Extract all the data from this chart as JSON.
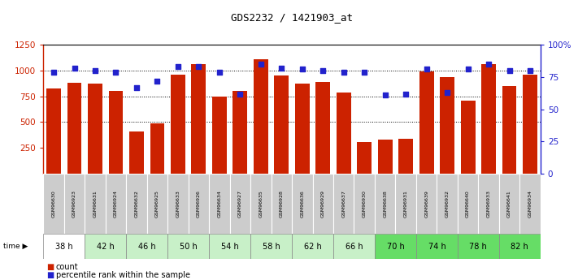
{
  "title": "GDS2232 / 1421903_at",
  "samples": [
    "GSM96630",
    "GSM96923",
    "GSM96631",
    "GSM96924",
    "GSM96632",
    "GSM96925",
    "GSM96633",
    "GSM96926",
    "GSM96634",
    "GSM96927",
    "GSM96635",
    "GSM96928",
    "GSM96636",
    "GSM96929",
    "GSM96637",
    "GSM96930",
    "GSM96638",
    "GSM96931",
    "GSM96639",
    "GSM96932",
    "GSM96640",
    "GSM96933",
    "GSM96641",
    "GSM96934"
  ],
  "counts": [
    830,
    880,
    870,
    800,
    410,
    490,
    960,
    1060,
    750,
    800,
    1110,
    950,
    875,
    890,
    790,
    310,
    330,
    340,
    990,
    940,
    710,
    1060,
    850,
    960
  ],
  "percentile_ranks": [
    79,
    82,
    80,
    79,
    67,
    72,
    83,
    83,
    79,
    62,
    85,
    82,
    81,
    80,
    79,
    79,
    61,
    62,
    81,
    63,
    81,
    85,
    80,
    80
  ],
  "time_groups": [
    {
      "label": "38 h",
      "start": 0,
      "end": 2,
      "color": "#ffffff"
    },
    {
      "label": "42 h",
      "start": 2,
      "end": 4,
      "color": "#c8f0c8"
    },
    {
      "label": "46 h",
      "start": 4,
      "end": 6,
      "color": "#c8f0c8"
    },
    {
      "label": "50 h",
      "start": 6,
      "end": 8,
      "color": "#c8f0c8"
    },
    {
      "label": "54 h",
      "start": 8,
      "end": 10,
      "color": "#c8f0c8"
    },
    {
      "label": "58 h",
      "start": 10,
      "end": 12,
      "color": "#c8f0c8"
    },
    {
      "label": "62 h",
      "start": 12,
      "end": 14,
      "color": "#c8f0c8"
    },
    {
      "label": "66 h",
      "start": 14,
      "end": 16,
      "color": "#c8f0c8"
    },
    {
      "label": "70 h",
      "start": 16,
      "end": 18,
      "color": "#66dd66"
    },
    {
      "label": "74 h",
      "start": 18,
      "end": 20,
      "color": "#66dd66"
    },
    {
      "label": "78 h",
      "start": 20,
      "end": 22,
      "color": "#66dd66"
    },
    {
      "label": "82 h",
      "start": 22,
      "end": 24,
      "color": "#66dd66"
    }
  ],
  "bar_color": "#cc2200",
  "dot_color": "#2222cc",
  "ylim_left": [
    0,
    1250
  ],
  "ylim_right": [
    0,
    100
  ],
  "yticks_left": [
    250,
    500,
    750,
    1000,
    1250
  ],
  "yticks_right": [
    0,
    25,
    50,
    75,
    100
  ],
  "bg_plot": "#ffffff",
  "bg_sample_row": "#cccccc"
}
